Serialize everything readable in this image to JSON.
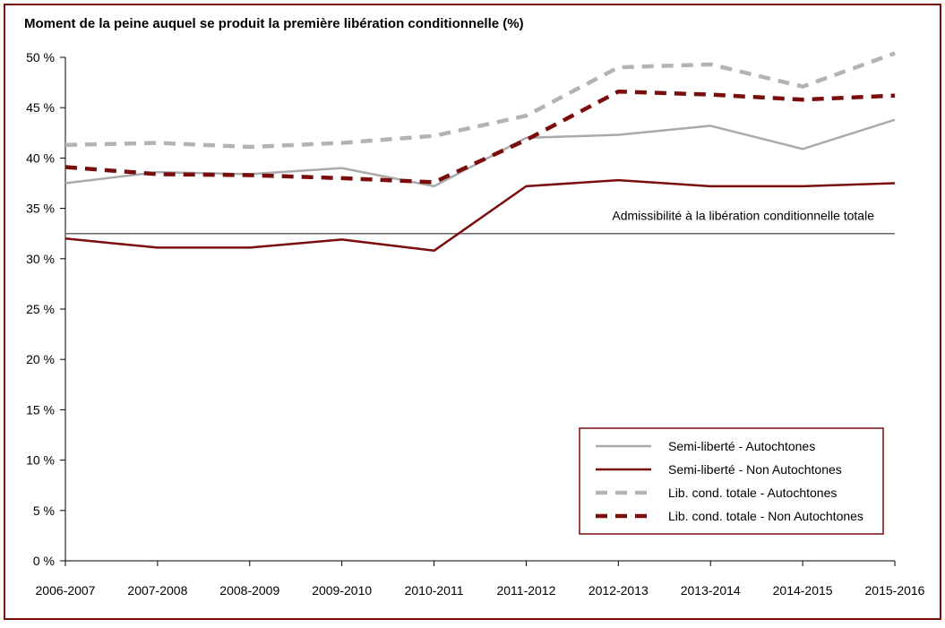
{
  "chart_data": {
    "type": "line",
    "title": "Moment de la peine auquel se produit la première libération conditionnelle (%)",
    "categories": [
      "2006-2007",
      "2007-2008",
      "2008-2009",
      "2009-2010",
      "2010-2011",
      "2011-2012",
      "2012-2013",
      "2013-2014",
      "2014-2015",
      "2015-2016"
    ],
    "y_ticks": [
      "0 %",
      "5 %",
      "10 %",
      "15 %",
      "20 %",
      "25 %",
      "30 %",
      "35 %",
      "40 %",
      "45 %",
      "50 %"
    ],
    "ylim": [
      0,
      50
    ],
    "series": [
      {
        "name": "Semi-liberté - Autochtones",
        "color": "#aaaaaa",
        "dashed": false,
        "values": [
          37.5,
          38.6,
          38.4,
          39.0,
          37.2,
          42.0,
          42.3,
          43.2,
          40.9,
          43.8
        ]
      },
      {
        "name": "Semi-liberté - Non Autochtones",
        "color": "#7b0c0c",
        "dashed": false,
        "values": [
          32.0,
          31.1,
          31.1,
          31.9,
          30.8,
          37.2,
          37.8,
          37.2,
          37.2,
          37.5
        ]
      },
      {
        "name": "Lib. cond. totale - Autochtones",
        "color": "#b3b3b3",
        "dashed": true,
        "values": [
          41.3,
          41.5,
          41.1,
          41.5,
          42.2,
          44.2,
          49.0,
          49.3,
          47.1,
          50.4
        ]
      },
      {
        "name": "Lib. cond. totale - Non Autochtones",
        "color": "#7b0c0c",
        "dashed": true,
        "values": [
          39.1,
          38.4,
          38.3,
          38.0,
          37.6,
          41.8,
          46.6,
          46.3,
          45.8,
          46.2
        ]
      }
    ],
    "reference_line": {
      "label": "Admissibilité à la libération conditionnelle totale",
      "value": 32.5,
      "color": "#666666"
    },
    "frame_color": "#7b0c0c",
    "grid": false,
    "legend_position": "bottom-right"
  }
}
